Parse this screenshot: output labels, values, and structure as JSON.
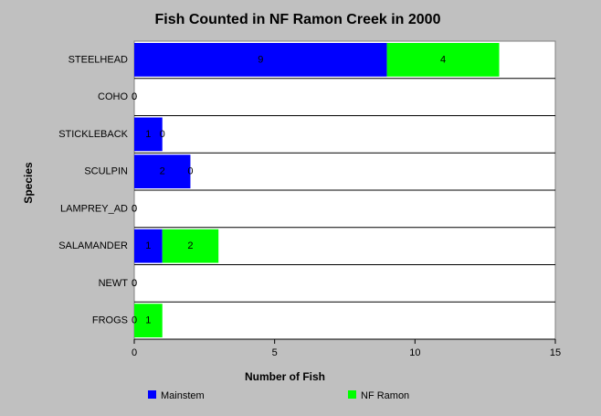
{
  "chart_data": {
    "type": "stacked-bar-horizontal",
    "title": "Fish Counted in NF Ramon Creek in 2000",
    "x_label": "Number of Fish",
    "y_label": "Species",
    "categories": [
      "STEELHEAD",
      "COHO",
      "STICKLEBACK",
      "SCULPIN",
      "LAMPREY_AD",
      "SALAMANDER",
      "NEWT",
      "FROGS"
    ],
    "series": [
      {
        "name": "Mainstem",
        "color": "#0000ff",
        "values": [
          9,
          0,
          1,
          2,
          0,
          1,
          0,
          0
        ]
      },
      {
        "name": "NF Ramon",
        "color": "#00ff00",
        "values": [
          4,
          0,
          0,
          0,
          0,
          2,
          0,
          1
        ]
      }
    ],
    "xlim": [
      0,
      15
    ],
    "xticks": [
      0,
      5,
      10,
      15
    ]
  }
}
